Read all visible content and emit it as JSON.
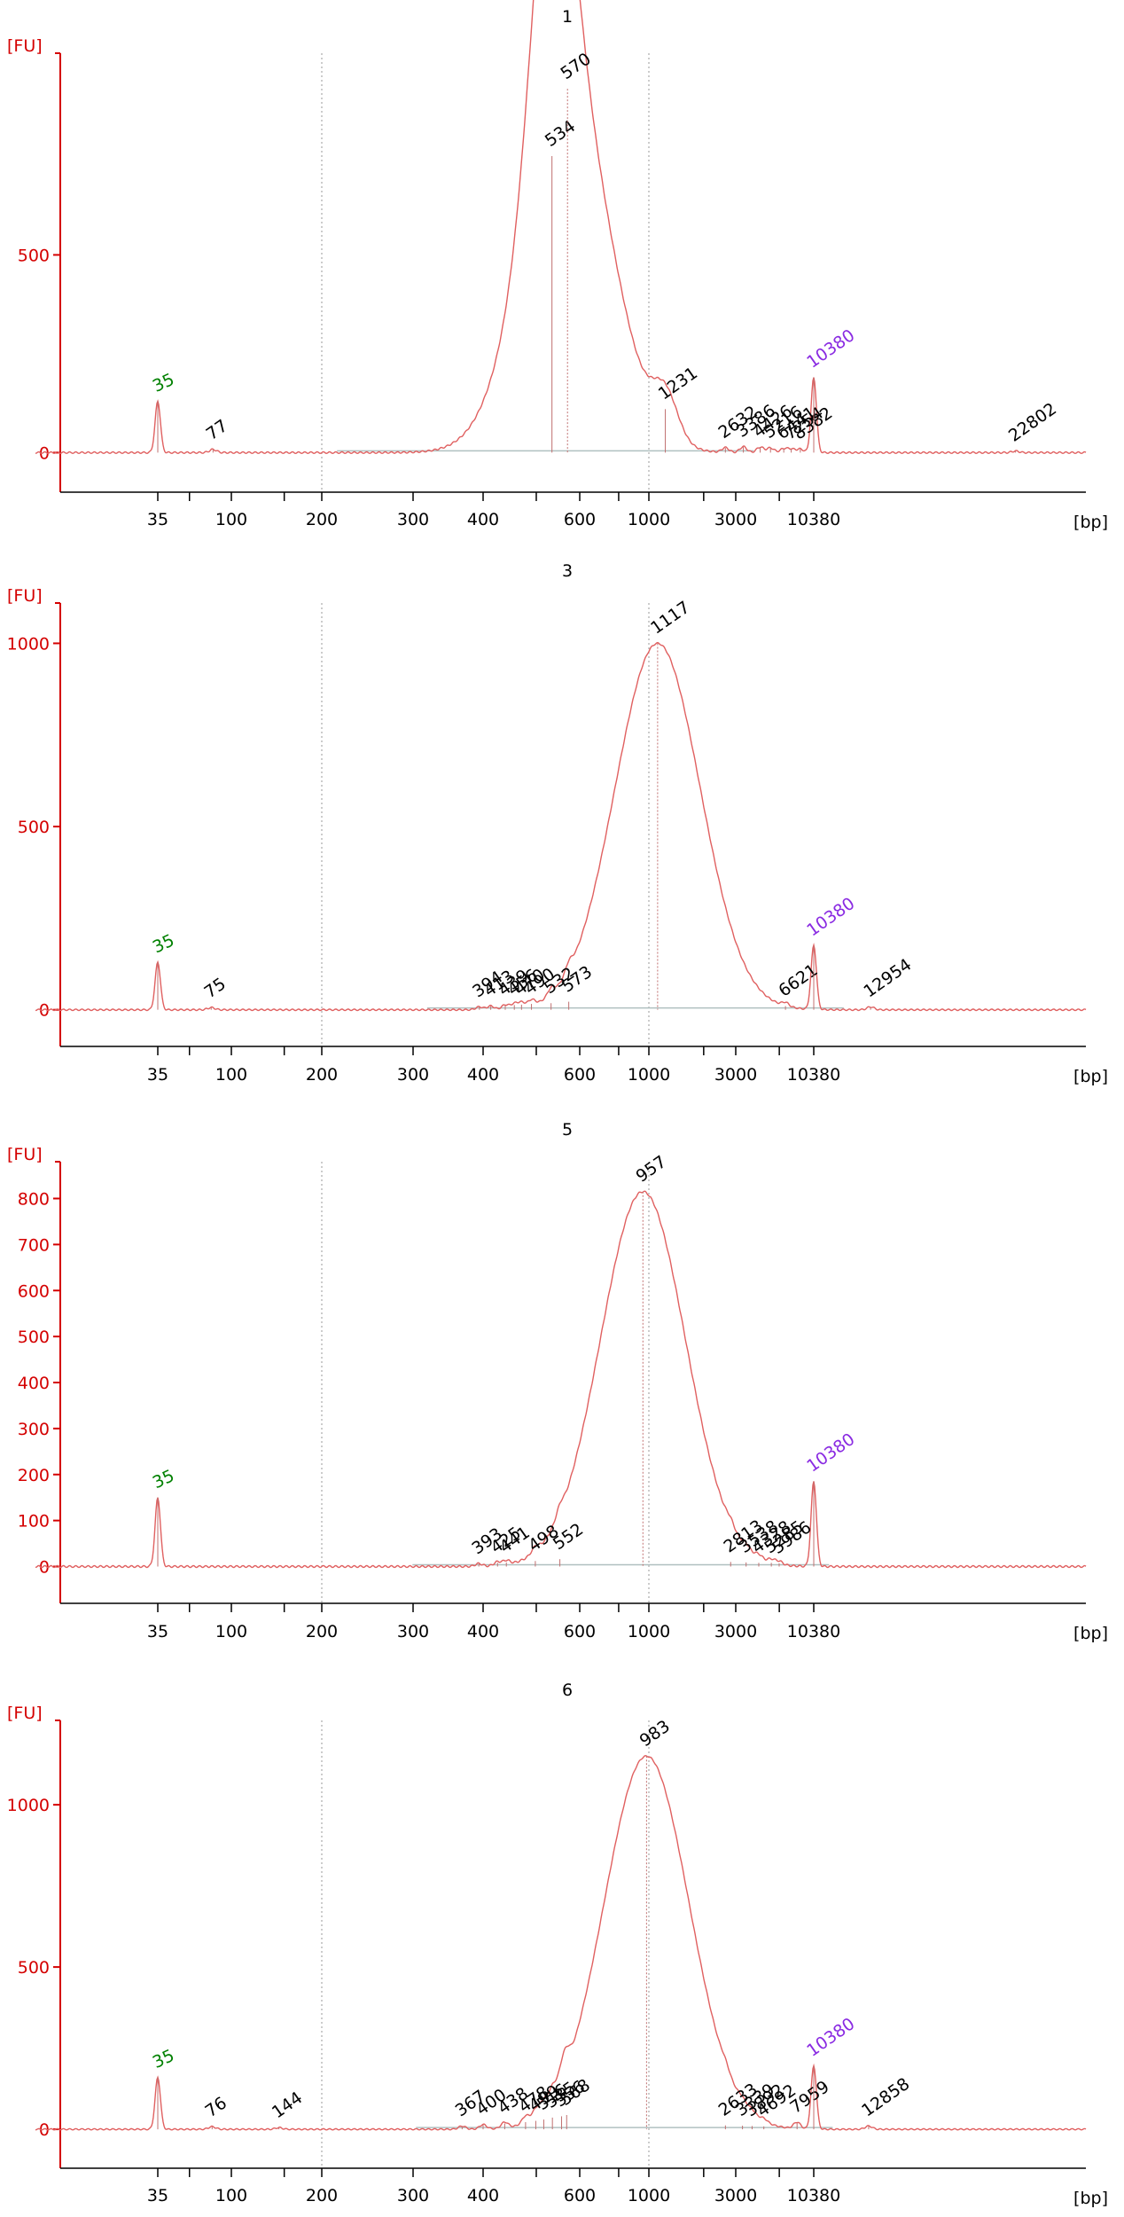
{
  "colors": {
    "axis": "#d40000",
    "trace": "#e06060",
    "baseline": "#b0c0c0",
    "grid": "#9a9a9a",
    "lower_marker": "#008000",
    "upper_marker": "#8a2be2",
    "text": "#000000"
  },
  "chart_data": [
    {
      "type": "line",
      "title": "1",
      "ylabel": "[FU]",
      "xlabel": "[bp]",
      "ylim": [
        -100,
        1010
      ],
      "yticks": [
        0,
        500
      ],
      "xtick_labels": [
        "35",
        "100",
        "200",
        "300",
        "400",
        "600",
        "1000",
        "3000",
        "10380"
      ],
      "peaks": [
        {
          "label": "35",
          "bp": 35,
          "fu": 130,
          "kind": "lower-marker"
        },
        {
          "label": "77",
          "bp": 77,
          "fu": 8
        },
        {
          "label": "534",
          "bp": 534,
          "fu": 750
        },
        {
          "label": "570",
          "bp": 570,
          "fu": 920
        },
        {
          "label": "1231",
          "bp": 1231,
          "fu": 110
        },
        {
          "label": "2632",
          "bp": 2632,
          "fu": 12
        },
        {
          "label": "3386",
          "bp": 3386,
          "fu": 15
        },
        {
          "label": "4426",
          "bp": 4426,
          "fu": 14
        },
        {
          "label": "5216",
          "bp": 5216,
          "fu": 12
        },
        {
          "label": "6441",
          "bp": 6441,
          "fu": 10
        },
        {
          "label": "7254",
          "bp": 7254,
          "fu": 9
        },
        {
          "label": "8382",
          "bp": 8382,
          "fu": 9
        },
        {
          "label": "10380",
          "bp": 10380,
          "fu": 190,
          "kind": "upper-marker"
        },
        {
          "label": "22802",
          "bp": 22802,
          "fu": 4
        }
      ]
    },
    {
      "type": "line",
      "title": "3",
      "ylabel": "[FU]",
      "xlabel": "[bp]",
      "ylim": [
        -100,
        1110
      ],
      "yticks": [
        0,
        500,
        1000
      ],
      "xtick_labels": [
        "35",
        "100",
        "200",
        "300",
        "400",
        "600",
        "1000",
        "3000",
        "10380"
      ],
      "peaks": [
        {
          "label": "35",
          "bp": 35,
          "fu": 130,
          "kind": "lower-marker"
        },
        {
          "label": "75",
          "bp": 75,
          "fu": 6
        },
        {
          "label": "394",
          "bp": 394,
          "fu": 8
        },
        {
          "label": "413",
          "bp": 413,
          "fu": 10
        },
        {
          "label": "439",
          "bp": 439,
          "fu": 12
        },
        {
          "label": "456",
          "bp": 456,
          "fu": 13
        },
        {
          "label": "470",
          "bp": 470,
          "fu": 14
        },
        {
          "label": "490",
          "bp": 490,
          "fu": 16
        },
        {
          "label": "532",
          "bp": 532,
          "fu": 18
        },
        {
          "label": "573",
          "bp": 573,
          "fu": 22
        },
        {
          "label": "1117",
          "bp": 1117,
          "fu": 1000
        },
        {
          "label": "6621",
          "bp": 6621,
          "fu": 10
        },
        {
          "label": "10380",
          "bp": 10380,
          "fu": 175,
          "kind": "upper-marker"
        },
        {
          "label": "12954",
          "bp": 12954,
          "fu": 8
        }
      ]
    },
    {
      "type": "line",
      "title": "5",
      "ylabel": "[FU]",
      "xlabel": "[bp]",
      "ylim": [
        -80,
        880
      ],
      "yticks": [
        0,
        100,
        200,
        300,
        400,
        500,
        600,
        700,
        800
      ],
      "xtick_labels": [
        "35",
        "100",
        "200",
        "300",
        "400",
        "600",
        "1000",
        "3000",
        "10380"
      ],
      "peaks": [
        {
          "label": "35",
          "bp": 35,
          "fu": 150,
          "kind": "lower-marker"
        },
        {
          "label": "393",
          "bp": 393,
          "fu": 6
        },
        {
          "label": "425",
          "bp": 425,
          "fu": 8
        },
        {
          "label": "441",
          "bp": 441,
          "fu": 9
        },
        {
          "label": "498",
          "bp": 498,
          "fu": 12
        },
        {
          "label": "552",
          "bp": 552,
          "fu": 16
        },
        {
          "label": "957",
          "bp": 957,
          "fu": 815
        },
        {
          "label": "2813",
          "bp": 2813,
          "fu": 10
        },
        {
          "label": "3538",
          "bp": 3538,
          "fu": 9
        },
        {
          "label": "4328",
          "bp": 4328,
          "fu": 8
        },
        {
          "label": "5285",
          "bp": 5285,
          "fu": 8
        },
        {
          "label": "5986",
          "bp": 5986,
          "fu": 7
        },
        {
          "label": "10380",
          "bp": 10380,
          "fu": 185,
          "kind": "upper-marker"
        }
      ]
    },
    {
      "type": "line",
      "title": "6",
      "ylabel": "[FU]",
      "xlabel": "[bp]",
      "ylim": [
        -120,
        1260
      ],
      "yticks": [
        0,
        500,
        1000
      ],
      "xtick_labels": [
        "35",
        "100",
        "200",
        "300",
        "400",
        "600",
        "1000",
        "3000",
        "10380"
      ],
      "peaks": [
        {
          "label": "35",
          "bp": 35,
          "fu": 160,
          "kind": "lower-marker"
        },
        {
          "label": "76",
          "bp": 76,
          "fu": 8
        },
        {
          "label": "144",
          "bp": 144,
          "fu": 5
        },
        {
          "label": "367",
          "bp": 367,
          "fu": 10
        },
        {
          "label": "400",
          "bp": 400,
          "fu": 14
        },
        {
          "label": "438",
          "bp": 438,
          "fu": 18
        },
        {
          "label": "478",
          "bp": 478,
          "fu": 22
        },
        {
          "label": "499",
          "bp": 499,
          "fu": 26
        },
        {
          "label": "516",
          "bp": 516,
          "fu": 30
        },
        {
          "label": "535",
          "bp": 535,
          "fu": 36
        },
        {
          "label": "556",
          "bp": 556,
          "fu": 40
        },
        {
          "label": "568",
          "bp": 568,
          "fu": 44
        },
        {
          "label": "983",
          "bp": 983,
          "fu": 1150
        },
        {
          "label": "2633",
          "bp": 2633,
          "fu": 12
        },
        {
          "label": "3339",
          "bp": 3339,
          "fu": 11
        },
        {
          "label": "3892",
          "bp": 3892,
          "fu": 10
        },
        {
          "label": "4692",
          "bp": 4692,
          "fu": 9
        },
        {
          "label": "7959",
          "bp": 7959,
          "fu": 20
        },
        {
          "label": "10380",
          "bp": 10380,
          "fu": 195,
          "kind": "upper-marker"
        },
        {
          "label": "12858",
          "bp": 12858,
          "fu": 10
        }
      ]
    }
  ]
}
